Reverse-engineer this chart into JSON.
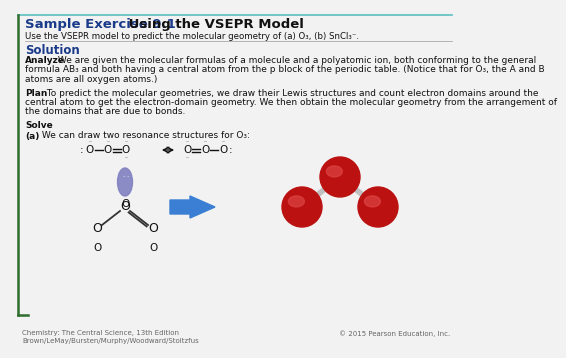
{
  "title_blue": "Sample Exercise 9.1",
  "title_black": " Using the VSEPR Model",
  "subtitle": "Use the VSEPR model to predict the molecular geometry of (a) O₃, (b) SnCl₃⁻.",
  "solution_label": "Solution",
  "analyze_bold": "Analyze",
  "analyze_line1": " We are given the molecular formulas of a molecule and a polyatomic ion, both conforming to the general",
  "analyze_line2": "formula AB₃ and both having a central atom from the p block of the periodic table. (Notice that for O₃, the A and B",
  "analyze_line3": "atoms are all oxygen atoms.)",
  "plan_bold": "Plan",
  "plan_line1": " To predict the molecular geometries, we draw their Lewis structures and count electron domains around the",
  "plan_line2": "central atom to get the electron-domain geometry. We then obtain the molecular geometry from the arrangement of",
  "plan_line3": "the domains that are due to bonds.",
  "solve_bold": "Solve",
  "part_a_bold": "(a)",
  "part_a_text": " We can draw two resonance structures for O₃:",
  "footer_left": "Chemistry: The Central Science, 13th Edition\nBrown/LeMay/Bursten/Murphy/Woodward/Stoltzfus",
  "footer_right": "© 2015 Pearson Education, Inc.",
  "bg_color": "#f2f2f2",
  "title_color": "#1a3a8a",
  "solution_color": "#1a3a8a",
  "border_color": "#2d6e2d",
  "text_color": "#111111",
  "arrow_color": "#3a7fd4",
  "atom_O_color": "#cc2222",
  "atom_lone_pair_color": "#8080c0",
  "footer_color": "#666666",
  "top_line_color": "#5bbec0",
  "separator_color": "#aaaaaa"
}
